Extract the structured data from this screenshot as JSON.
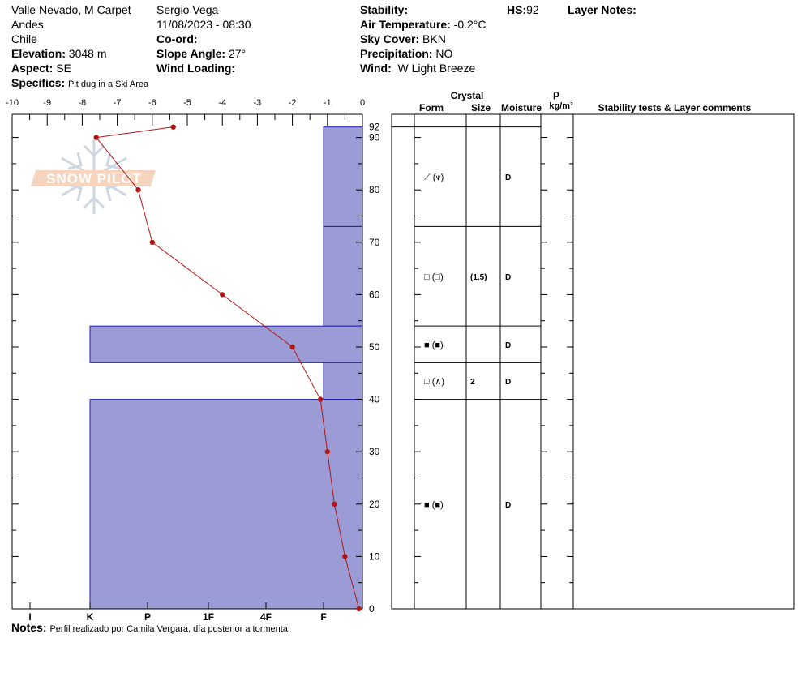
{
  "header": {
    "location": "Valle Nevado, M Carpet",
    "range": "Andes",
    "country": "Chile",
    "elevation_label": "Elevation:",
    "elevation": "3048 m",
    "aspect_label": "Aspect:",
    "aspect": "SE",
    "specifics_label": "Specifics:",
    "specifics": "Pit dug in a Ski Area",
    "observer": "Sergio Vega",
    "datetime": "11/08/2023 - 08:30",
    "coord_label": "Co-ord:",
    "slope_label": "Slope Angle:",
    "slope": "27°",
    "wind_loading_label": "Wind Loading:",
    "stability_label": "Stability:",
    "air_temp_label": "Air Temperature:",
    "air_temp": "-0.2°C",
    "sky_label": "Sky Cover:",
    "sky": "BKN",
    "precip_label": "Precipitation:",
    "precip": "NO",
    "wind_label": "Wind:",
    "wind": "W Light Breeze",
    "hs_label": "HS:",
    "hs": "92",
    "layer_notes_label": "Layer Notes:"
  },
  "notes_label": "Notes:",
  "notes": "Perfil realizado por Camila Vergara, día posterior a tormenta.",
  "logo_text": "SNOW PILOT",
  "table_headers": {
    "crystal": "Crystal",
    "form": "Form",
    "size": "Size",
    "moisture": "Moisture",
    "rho": "ρ",
    "density_unit": "kg/m³",
    "comments": "Stability tests & Layer comments"
  },
  "colors": {
    "hardness_fill": "#9b9bd6",
    "hardness_stroke": "#1f1fb4",
    "temp_line": "#b01818"
  },
  "chart_data": {
    "type": "line",
    "temp_axis": {
      "ticks": [
        -10,
        -9,
        -8,
        -7,
        -6,
        -5,
        -4,
        -3,
        -2,
        -1,
        0
      ],
      "range": [
        -10,
        0
      ]
    },
    "height_axis": {
      "ticks": [
        0,
        10,
        20,
        30,
        40,
        50,
        60,
        70,
        80,
        90
      ],
      "range": [
        0,
        92
      ],
      "top_label": "92"
    },
    "hardness_axis": {
      "labels": [
        "I",
        "K",
        "P",
        "1F",
        "4F",
        "F"
      ]
    },
    "temperature_profile": [
      {
        "height": 92,
        "temp": -5.4
      },
      {
        "height": 90,
        "temp": -7.6
      },
      {
        "height": 80,
        "temp": -6.4
      },
      {
        "height": 70,
        "temp": -6.0
      },
      {
        "height": 60,
        "temp": -4.0
      },
      {
        "height": 50,
        "temp": -2.0
      },
      {
        "height": 40,
        "temp": -1.2
      },
      {
        "height": 30,
        "temp": -1.0
      },
      {
        "height": 20,
        "temp": -0.8
      },
      {
        "height": 10,
        "temp": -0.5
      },
      {
        "height": 0,
        "temp": -0.1
      }
    ],
    "layers": [
      {
        "top": 92,
        "bottom": 73,
        "hardness": "F",
        "form": "⟋ (⩛)",
        "size": "",
        "moisture": "D"
      },
      {
        "top": 73,
        "bottom": 54,
        "hardness": "F",
        "form": "□ (□)",
        "size": "(1.5)",
        "moisture": "D"
      },
      {
        "top": 54,
        "bottom": 47,
        "hardness": "K",
        "form": "■ (■)",
        "size": "",
        "moisture": "D"
      },
      {
        "top": 47,
        "bottom": 40,
        "hardness": "F",
        "form": "□ (∧)",
        "size": "2",
        "moisture": "D"
      },
      {
        "top": 40,
        "bottom": 0,
        "hardness": "K",
        "form": "■ (■)",
        "size": "",
        "moisture": "D"
      }
    ]
  }
}
